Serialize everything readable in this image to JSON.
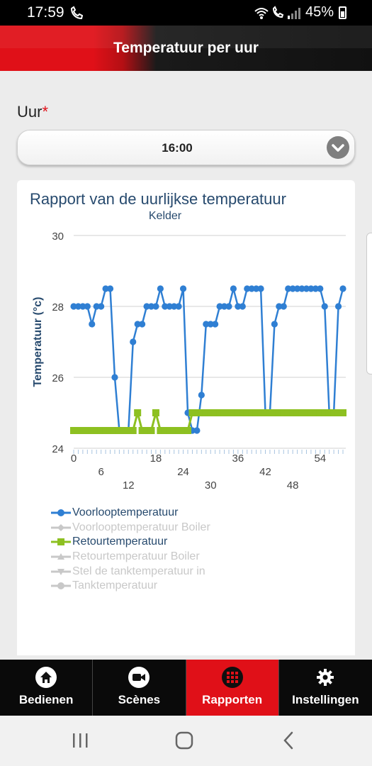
{
  "status_bar": {
    "time": "17:59",
    "battery": "45%"
  },
  "header": {
    "title": "Temperatuur per uur"
  },
  "hour_field": {
    "label": "Uur",
    "required_mark": "*",
    "value": "16:00"
  },
  "chart_data": {
    "type": "line",
    "title": "Rapport van de uurlijkse temperatuur",
    "subtitle": "Kelder",
    "xlabel": "",
    "ylabel": "Temperatuur (°c)",
    "ylim": [
      24,
      30
    ],
    "xlim": [
      0,
      59
    ],
    "x_ticks_upper": [
      "0",
      "18",
      "36",
      "54"
    ],
    "x_ticks_middle": [
      "6",
      "24",
      "42"
    ],
    "x_ticks_lower": [
      "12",
      "30",
      "48"
    ],
    "y_ticks": [
      "24",
      "26",
      "28",
      "30"
    ],
    "grid": true,
    "legend_position": "bottom",
    "series": [
      {
        "name": "Voorlooptemperatuur",
        "color": "#2f7fd3",
        "marker": "circle",
        "active": true,
        "x": [
          0,
          1,
          2,
          3,
          4,
          5,
          6,
          7,
          8,
          9,
          10,
          11,
          12,
          13,
          14,
          15,
          16,
          17,
          18,
          19,
          20,
          21,
          22,
          23,
          24,
          25,
          26,
          27,
          28,
          29,
          30,
          31,
          32,
          33,
          34,
          35,
          36,
          37,
          38,
          39,
          40,
          41,
          42,
          43,
          44,
          45,
          46,
          47,
          48,
          49,
          50,
          51,
          52,
          53,
          54,
          55,
          56,
          57,
          58,
          59
        ],
        "values": [
          28,
          28,
          28,
          28,
          27.5,
          28,
          28,
          28.5,
          28.5,
          26,
          24.5,
          24.5,
          24.5,
          27,
          27.5,
          27.5,
          28,
          28,
          28,
          28.5,
          28,
          28,
          28,
          28,
          28.5,
          25,
          24.5,
          24.5,
          25.5,
          27.5,
          27.5,
          27.5,
          28,
          28,
          28,
          28.5,
          28,
          28,
          28.5,
          28.5,
          28.5,
          28.5,
          25,
          25,
          27.5,
          28,
          28,
          28.5,
          28.5,
          28.5,
          28.5,
          28.5,
          28.5,
          28.5,
          28.5,
          28,
          25,
          25,
          28,
          28.5
        ]
      },
      {
        "name": "Voorlooptemperatuur Boiler",
        "color": "#c8c8c8",
        "marker": "diamond",
        "active": false
      },
      {
        "name": "Retourtemperatuur",
        "color": "#8dc021",
        "marker": "square",
        "active": true,
        "x": [
          0,
          1,
          2,
          3,
          4,
          5,
          6,
          7,
          8,
          9,
          10,
          11,
          12,
          13,
          14,
          15,
          16,
          17,
          18,
          19,
          20,
          21,
          22,
          23,
          24,
          25,
          26,
          27,
          28,
          29,
          30,
          31,
          32,
          33,
          34,
          35,
          36,
          37,
          38,
          39,
          40,
          41,
          42,
          43,
          44,
          45,
          46,
          47,
          48,
          49,
          50,
          51,
          52,
          53,
          54,
          55,
          56,
          57,
          58,
          59
        ],
        "values": [
          24.5,
          24.5,
          24.5,
          24.5,
          24.5,
          24.5,
          24.5,
          24.5,
          24.5,
          24.5,
          24.5,
          24.5,
          24.5,
          24.5,
          25,
          24.5,
          24.5,
          24.5,
          25,
          24.5,
          24.5,
          24.5,
          24.5,
          24.5,
          24.5,
          24.5,
          25,
          25,
          25,
          25,
          25,
          25,
          25,
          25,
          25,
          25,
          25,
          25,
          25,
          25,
          25,
          25,
          25,
          25,
          25,
          25,
          25,
          25,
          25,
          25,
          25,
          25,
          25,
          25,
          25,
          25,
          25,
          25,
          25,
          25
        ]
      },
      {
        "name": "Retourtemperatuur Boiler",
        "color": "#c8c8c8",
        "marker": "triangle",
        "active": false
      },
      {
        "name": "Stel de tanktemperatuur in",
        "color": "#c8c8c8",
        "marker": "triangle-down",
        "active": false
      },
      {
        "name": "Tanktemperatuur",
        "color": "#c8c8c8",
        "marker": "circle",
        "active": false
      }
    ]
  },
  "bottom_nav": {
    "items": [
      {
        "label": "Bedienen",
        "icon": "home-icon",
        "active": false
      },
      {
        "label": "Scènes",
        "icon": "video-camera-icon",
        "active": false
      },
      {
        "label": "Rapporten",
        "icon": "grid-icon",
        "active": true
      },
      {
        "label": "Instellingen",
        "icon": "gear-icon",
        "active": false
      }
    ]
  }
}
